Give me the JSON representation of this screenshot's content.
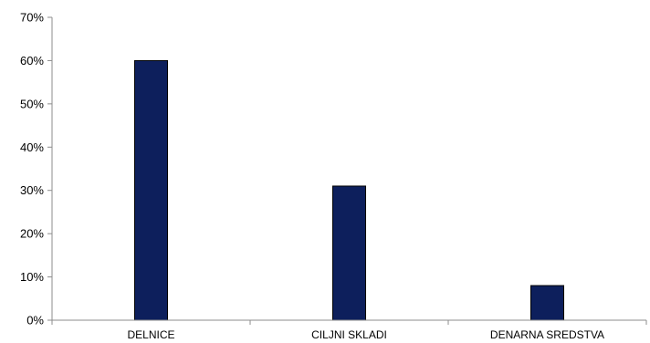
{
  "chart_data": {
    "type": "bar",
    "categories": [
      "DELNICE",
      "CILJNI SKLADI",
      "DENARNA SREDSTVA"
    ],
    "values": [
      60,
      31,
      8
    ],
    "ylim": [
      0,
      70
    ],
    "yticks": [
      0,
      10,
      20,
      30,
      40,
      50,
      60,
      70
    ],
    "ytick_labels": [
      "0%",
      "10%",
      "20%",
      "30%",
      "40%",
      "50%",
      "60%",
      "70%"
    ],
    "grid": false,
    "legend": "none",
    "colors": {
      "bar": "#0d1f5c",
      "bar_stroke": "#000000",
      "axis": "#8c8c8c"
    }
  }
}
